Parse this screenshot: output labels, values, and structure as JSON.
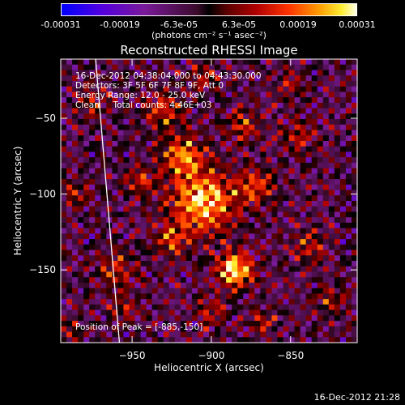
{
  "colorbar": {
    "labels": [
      "-0.00031",
      "-0.00019",
      "-6.3e-05",
      "6.3e-05",
      "0.00019",
      "0.00031"
    ],
    "units": "(photons cm⁻² s⁻¹ asec⁻²)"
  },
  "chart_data": {
    "type": "heatmap",
    "title": "Reconstructed RHESSI Image",
    "xlabel": "Heliocentric X (arcsec)",
    "ylabel": "Heliocentric Y (arcsec)",
    "xlim": [
      -995,
      -808
    ],
    "ylim": [
      -198,
      -11
    ],
    "x_ticks": [
      -950,
      -900,
      -850
    ],
    "x_tick_labels": [
      "−950",
      "−900",
      "−850"
    ],
    "y_ticks": [
      -50,
      -100,
      -150
    ],
    "y_tick_labels": [
      "−50",
      "−100",
      "−150"
    ],
    "value_range": [
      -0.00031,
      0.00031
    ],
    "peak": [
      -885,
      -150
    ],
    "limb_line": [
      [
        -973,
        -11
      ],
      [
        -958,
        -198
      ]
    ],
    "annotations": [
      "16-Dec-2012 04:38:04.000 to 04:43:30.000",
      "Detectors: 3F 5F 6F 7F 8F 9F, Att 0",
      "Energy Range: 12.0 - 25.0 keV",
      "Clean     Total counts: 4.46E+03",
      "Position of Peak = [-885,-150]"
    ]
  },
  "footer": {
    "date": "16-Dec-2012 21:28"
  }
}
